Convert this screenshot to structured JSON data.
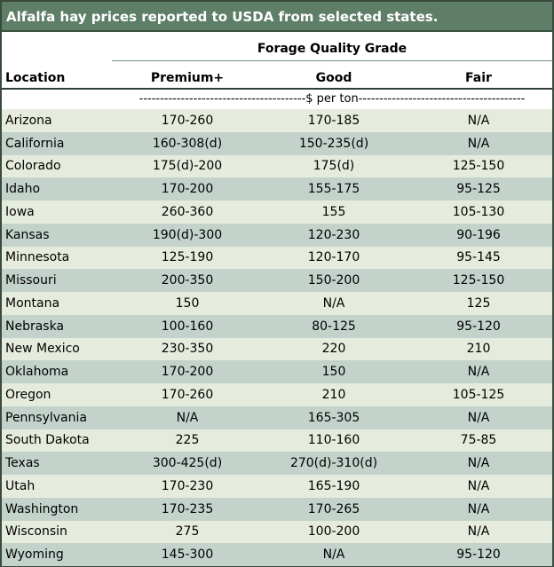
{
  "title": "Alfalfa hay prices reported to USDA from selected states.",
  "header": {
    "group_label": "Forage Quality Grade",
    "location_label": "Location",
    "columns": [
      "Premium+",
      "Good",
      "Fair"
    ],
    "units": "----------------------------------------$ per ton----------------------------------------"
  },
  "rows": [
    {
      "location": "Arizona",
      "premium": "170-260",
      "good": "170-185",
      "fair": "N/A"
    },
    {
      "location": "California",
      "premium": "160-308(d)",
      "good": "150-235(d)",
      "fair": "N/A"
    },
    {
      "location": "Colorado",
      "premium": "175(d)-200",
      "good": "175(d)",
      "fair": "125-150"
    },
    {
      "location": "Idaho",
      "premium": "170-200",
      "good": "155-175",
      "fair": "95-125"
    },
    {
      "location": "Iowa",
      "premium": "260-360",
      "good": "155",
      "fair": "105-130"
    },
    {
      "location": "Kansas",
      "premium": "190(d)-300",
      "good": "120-230",
      "fair": "90-196"
    },
    {
      "location": "Minnesota",
      "premium": "125-190",
      "good": "120-170",
      "fair": "95-145"
    },
    {
      "location": "Missouri",
      "premium": "200-350",
      "good": "150-200",
      "fair": "125-150"
    },
    {
      "location": "Montana",
      "premium": "150",
      "good": "N/A",
      "fair": "125"
    },
    {
      "location": "Nebraska",
      "premium": "100-160",
      "good": "80-125",
      "fair": "95-120"
    },
    {
      "location": "New Mexico",
      "premium": "230-350",
      "good": "220",
      "fair": "210"
    },
    {
      "location": "Oklahoma",
      "premium": "170-200",
      "good": "150",
      "fair": "N/A"
    },
    {
      "location": "Oregon",
      "premium": "170-260",
      "good": "210",
      "fair": "105-125"
    },
    {
      "location": "Pennsylvania",
      "premium": "N/A",
      "good": "165-305",
      "fair": "N/A"
    },
    {
      "location": "South Dakota",
      "premium": "225",
      "good": "110-160",
      "fair": "75-85"
    },
    {
      "location": "Texas",
      "premium": "300-425(d)",
      "good": "270(d)-310(d)",
      "fair": "N/A"
    },
    {
      "location": "Utah",
      "premium": "170-230",
      "good": "165-190",
      "fair": "N/A"
    },
    {
      "location": "Washington",
      "premium": "170-235",
      "good": "170-265",
      "fair": "N/A"
    },
    {
      "location": "Wisconsin",
      "premium": "275",
      "good": "100-200",
      "fair": "N/A"
    },
    {
      "location": "Wyoming",
      "premium": "145-300",
      "good": "N/A",
      "fair": "95-120"
    }
  ]
}
